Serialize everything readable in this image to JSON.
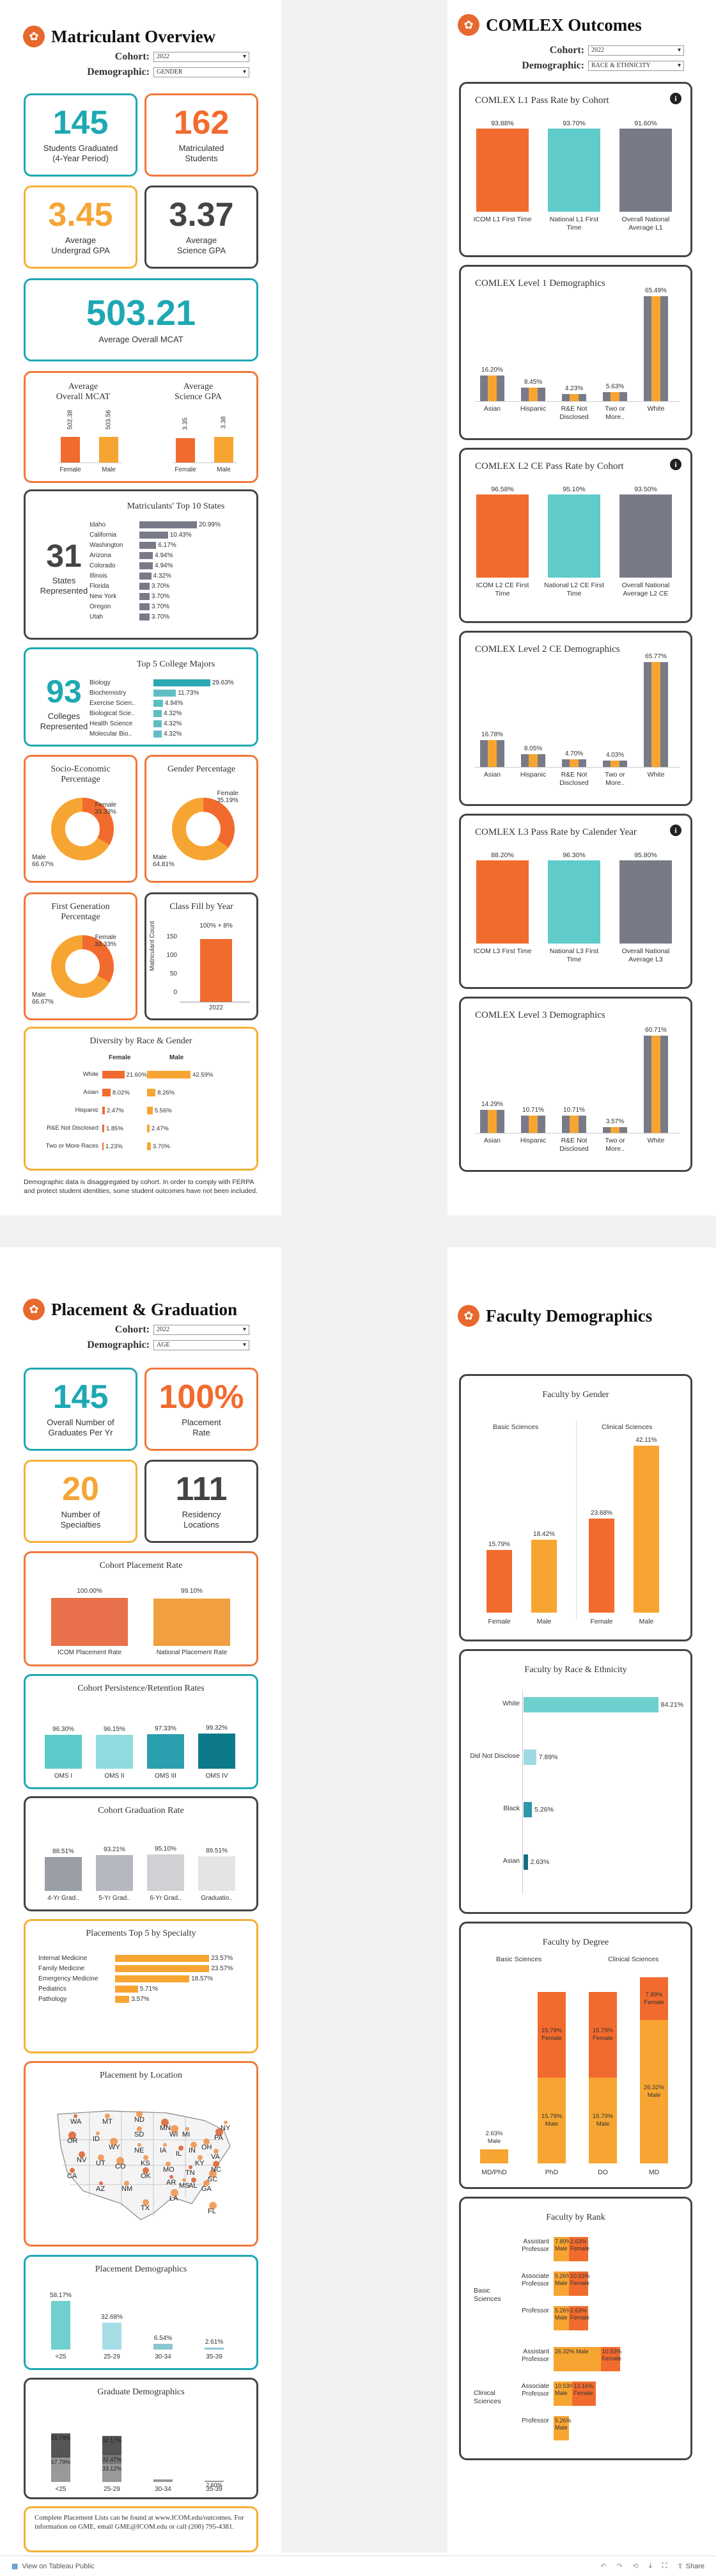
{
  "colors": {
    "orange": "#f26b2e",
    "yellow": "#f7a532",
    "teal": "#5fcbcb",
    "gray": "#787b87",
    "dark": "#444444"
  },
  "matriculant": {
    "title": "Matriculant Overview",
    "cohort_label": "Cohort:",
    "cohort_value": "2022",
    "demo_label": "Demographic:",
    "demo_value": "GENDER",
    "kpi1": {
      "num": "145",
      "lbl1": "Students Graduated",
      "lbl2": "(4-Year Period)"
    },
    "kpi2": {
      "num": "162",
      "lbl1": "Matriculated",
      "lbl2": "Students"
    },
    "kpi3": {
      "num": "3.45",
      "lbl1": "Average",
      "lbl2": "Undergrad GPA"
    },
    "kpi4": {
      "num": "3.37",
      "lbl1": "Average",
      "lbl2": "Science GPA"
    },
    "kpi5": {
      "num": "503.21",
      "lbl": "Average Overall MCAT"
    },
    "avg_mcat": {
      "title1": "Average",
      "title2": "Overall MCAT",
      "vals": [
        "502.38",
        "503.56"
      ],
      "cats": [
        "Female",
        "Male"
      ]
    },
    "avg_sci": {
      "title1": "Average",
      "title2": "Science GPA",
      "vals": [
        "3.35",
        "3.38"
      ],
      "cats": [
        "Female",
        "Male"
      ]
    },
    "states": {
      "num": "31",
      "lbl1": "States",
      "lbl2": "Represented",
      "title": "Matriculants' Top 10 States",
      "rows": [
        {
          "n": "Idaho",
          "v": "20.99%"
        },
        {
          "n": "California",
          "v": "10.43%"
        },
        {
          "n": "Washington",
          "v": "6.17%"
        },
        {
          "n": "Arizona",
          "v": "4.94%"
        },
        {
          "n": "Colorado",
          "v": "4.94%"
        },
        {
          "n": "Illinois",
          "v": "4.32%"
        },
        {
          "n": "Florida",
          "v": "3.70%"
        },
        {
          "n": "New York",
          "v": "3.70%"
        },
        {
          "n": "Oregon",
          "v": "3.70%"
        },
        {
          "n": "Utah",
          "v": "3.70%"
        }
      ]
    },
    "majors": {
      "num": "93",
      "lbl1": "Colleges",
      "lbl2": "Represented",
      "title": "Top 5 College Majors",
      "rows": [
        {
          "n": "Biology",
          "v": "29.63%"
        },
        {
          "n": "Biochemistry",
          "v": "11.73%"
        },
        {
          "n": "Exercise Scien..",
          "v": "4.94%"
        },
        {
          "n": "Biological Scie..",
          "v": "4.32%"
        },
        {
          "n": "Health Science",
          "v": "4.32%"
        },
        {
          "n": "Molecular Bio..",
          "v": "4.32%"
        }
      ]
    },
    "ses": {
      "title1": "Socio-Economic",
      "title2": "Percentage",
      "female": "Female",
      "fv": "33.33%",
      "male": "Male",
      "mv": "66.67%"
    },
    "gender": {
      "title": "Gender Percentage",
      "female": "Female",
      "fv": "35.19%",
      "male": "Male",
      "mv": "64.81%"
    },
    "firstgen": {
      "title1": "First Generation",
      "title2": "Percentage",
      "female": "Female",
      "fv": "33.33%",
      "male": "Male",
      "mv": "66.67%"
    },
    "classfill": {
      "title": "Class Fill by Year",
      "label": "100% + 8%",
      "ylabel": "Matriculant Count",
      "ticks": [
        "150",
        "100",
        "50",
        "0"
      ],
      "year": "2022"
    },
    "diversity": {
      "title": "Diversity by Race & Gender",
      "female": "Female",
      "male": "Male",
      "rows": [
        {
          "n": "White",
          "f": "21.60%",
          "m": "42.59%"
        },
        {
          "n": "Asian",
          "f": "8.02%",
          "m": "8.26%"
        },
        {
          "n": "Hispanic",
          "f": "2.47%",
          "m": "5.56%"
        },
        {
          "n": "R&E Not Disclosed",
          "f": "1.85%",
          "m": "2.47%"
        },
        {
          "n": "Two or More Races",
          "f": "1.23%",
          "m": "3.70%"
        }
      ]
    },
    "note": "Demographic data is disaggregated by cohort. In order to comply with FERPA and protect student identities, some student outcomes have not been included."
  },
  "comlex": {
    "title": "COMLEX Outcomes",
    "cohort_label": "Cohort:",
    "cohort_value": "2022",
    "demo_label": "Demographic:",
    "demo_value": "RACE & ETHNICITY",
    "l1": {
      "title": "COMLEX L1 Pass Rate by Cohort",
      "vals": [
        "93.88%",
        "93.70%",
        "91.60%"
      ],
      "cats": [
        "ICOM L1 First Time",
        "National L1 First Time",
        "Overall National Average L1"
      ]
    },
    "l1d": {
      "title": "COMLEX Level 1 Demographics",
      "cats": [
        "Asian",
        "Hispanic",
        "R&E Not Disclosed",
        "Two or More..",
        "White"
      ],
      "vals": [
        "16.20%",
        "8.45%",
        "4.23%",
        "5.63%",
        "65.49%"
      ]
    },
    "l2": {
      "title": "COMLEX L2 CE Pass Rate by Cohort",
      "vals": [
        "96.58%",
        "95.10%",
        "93.50%"
      ],
      "cats": [
        "ICOM L2 CE First Time",
        "National L2 CE First Time",
        "Overall National Average L2 CE"
      ]
    },
    "l2d": {
      "title": "COMLEX Level 2 CE Demographics",
      "cats": [
        "Asian",
        "Hispanic",
        "R&E Not Disclosed",
        "Two or More..",
        "White"
      ],
      "vals": [
        "16.78%",
        "8.05%",
        "4.70%",
        "4.03%",
        "65.77%"
      ]
    },
    "l3": {
      "title": "COMLEX L3 Pass Rate by Calender Year",
      "vals": [
        "88.20%",
        "96.30%",
        "95.80%"
      ],
      "cats": [
        "ICOM L3 First Time",
        "National L3 First Time",
        "Overall National Average L3"
      ]
    },
    "l3d": {
      "title": "COMLEX Level 3 Demographics",
      "cats": [
        "Asian",
        "Hispanic",
        "R&E Not Disclosed",
        "Two or More..",
        "White"
      ],
      "vals": [
        "14.29%",
        "10.71%",
        "10.71%",
        "3.57%",
        "60.71%"
      ]
    }
  },
  "placement": {
    "title": "Placement & Graduation",
    "cohort_label": "Cohort:",
    "cohort_value": "2022",
    "demo_label": "Demographic:",
    "demo_value": "AGE",
    "kpi1": {
      "num": "145",
      "lbl1": "Overall Number of",
      "lbl2": "Graduates Per Yr"
    },
    "kpi2": {
      "num": "100%",
      "lbl1": "Placement",
      "lbl2": "Rate"
    },
    "kpi3": {
      "num": "20",
      "lbl1": "Number of",
      "lbl2": "Specialties"
    },
    "kpi4": {
      "num": "111",
      "lbl1": "Residency",
      "lbl2": "Locations"
    },
    "cpr": {
      "title": "Cohort Placement Rate",
      "vals": [
        "100.00%",
        "99.10%"
      ],
      "cats": [
        "ICOM Placement Rate",
        "National Placement Rate"
      ]
    },
    "ret": {
      "title": "Cohort Persistence/Retention Rates",
      "vals": [
        "96.30%",
        "96.15%",
        "97.33%",
        "99.32%"
      ],
      "cats": [
        "OMS I",
        "OMS II",
        "OMS III",
        "OMS IV"
      ]
    },
    "grad": {
      "title": "Cohort Graduation Rate",
      "vals": [
        "88.51%",
        "93.21%",
        "95.10%",
        "89.51%"
      ],
      "cats": [
        "4-Yr Grad..",
        "5-Yr Grad..",
        "6-Yr Grad..",
        "Graduatio.."
      ]
    },
    "spec": {
      "title": "Placements Top 5 by Specialty",
      "rows": [
        {
          "n": "Internal Medicine",
          "v": "23.57%"
        },
        {
          "n": "Family Medicine",
          "v": "23.57%"
        },
        {
          "n": "Emergency Medicine",
          "v": "18.57%"
        },
        {
          "n": "Pediatrics",
          "v": "5.71%"
        },
        {
          "n": "Pathology",
          "v": "3.57%"
        }
      ]
    },
    "map": {
      "title": "Placement by Location",
      "states": [
        "WA",
        "MT",
        "ND",
        "OR",
        "ID",
        "SD",
        "NV",
        "WY",
        "NE",
        "CA",
        "UT",
        "CO",
        "AZ",
        "NM",
        "TX",
        "MN",
        "IA",
        "MO",
        "OK",
        "LA",
        "MS",
        "AL",
        "GA",
        "FL",
        "TN",
        "KY",
        "OH",
        "PA",
        "NY",
        "VA",
        "NC",
        "SC",
        "MI",
        "IL",
        "IN",
        "WI",
        "AR",
        "KS"
      ]
    },
    "pdemo": {
      "title": "Placement Demographics",
      "vals": [
        "58.17%",
        "32.68%",
        "6.54%",
        "2.61%"
      ],
      "cats": [
        "<25",
        "25-29",
        "30-34",
        "35-39"
      ]
    },
    "gdemo": {
      "title": "Graduate Demographics",
      "top": [
        "55.78%",
        "32.17%",
        "",
        ""
      ],
      "mid": [
        "",
        "32.47%",
        "",
        ""
      ],
      "bot": [
        "57.79%",
        "33.12%",
        "",
        "2.60%"
      ],
      "cats": [
        "<25",
        "25-29",
        "30-34",
        "35-39"
      ]
    },
    "note": "Complete Placement Lists can be found at www.ICOM.edu/outcomes. For information on GME, email GME@ICOM.edu or call (208) 795-4381."
  },
  "faculty": {
    "title": "Faculty Demographics",
    "gender": {
      "title": "Faculty by Gender",
      "g1": "Basic Sciences",
      "g2": "Clinical Sciences",
      "vals": [
        "15.79%",
        "18.42%",
        "23.68%",
        "42.11%"
      ],
      "cats": [
        "Female",
        "Male",
        "Female",
        "Male"
      ]
    },
    "race": {
      "title": "Faculty by Race & Ethnicity",
      "rows": [
        {
          "n": "White",
          "v": "84.21%"
        },
        {
          "n": "Did Not Disclose",
          "v": "7.89%"
        },
        {
          "n": "Black",
          "v": "5.26%"
        },
        {
          "n": "Asian",
          "v": "2.63%"
        }
      ]
    },
    "degree": {
      "title": "Faculty by Degree",
      "g1": "Basic Sciences",
      "g2": "Clinical Sciences",
      "cats": [
        "MD/PhD",
        "PhD",
        "DO",
        "MD"
      ],
      "bars": [
        {
          "m": "2.63%",
          "ml": "Male",
          "f": "",
          "fl": ""
        },
        {
          "m": "15.79%",
          "ml": "Male",
          "f": "15.79%",
          "fl": "Female"
        },
        {
          "m": "15.79%",
          "ml": "Male",
          "f": "15.79%",
          "fl": "Female"
        },
        {
          "m": "26.32%",
          "ml": "Male",
          "f": "7.89%",
          "fl": "Female"
        }
      ]
    },
    "rank": {
      "title": "Faculty by Rank",
      "g1": "Basic Sciences",
      "g2": "Clinical Sciences",
      "rows": [
        {
          "r": "Assistant Professor",
          "m": "7.89% Male",
          "f": "2.63% Female"
        },
        {
          "r": "Associate Professor",
          "m": "5.26% Male",
          "f": "10.53% Female"
        },
        {
          "r": "Professor",
          "m": "5.26% Male",
          "f": "2.63% Female"
        },
        {
          "r": "Assistant Professor",
          "m": "26.32% Male",
          "f": "10.53% Female"
        },
        {
          "r": "Associate Professor",
          "m": "10.53% Male",
          "f": "13.16% Female"
        },
        {
          "r": "Professor",
          "m": "5.26% Male",
          "f": ""
        }
      ]
    }
  },
  "footer": {
    "label": "View on Tableau Public",
    "share": "Share"
  }
}
